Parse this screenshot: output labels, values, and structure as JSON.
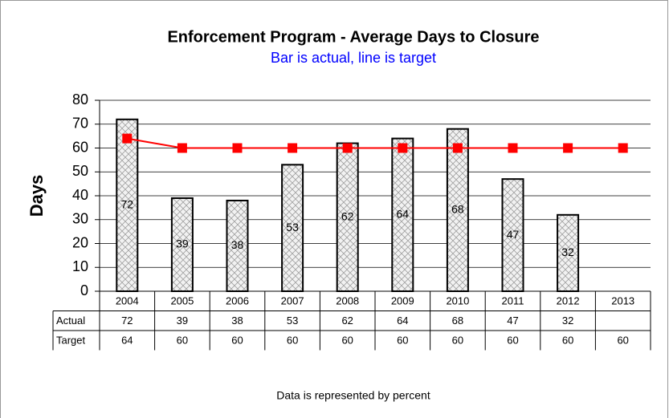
{
  "chart_data": {
    "type": "bar",
    "title": "Enforcement Program - Average Days to Closure",
    "subtitle": "Bar is actual, line is target",
    "ylabel": "Days",
    "footnote": "Data is represented by percent",
    "categories": [
      "2004",
      "2005",
      "2006",
      "2007",
      "2008",
      "2009",
      "2010",
      "2011",
      "2012",
      "2013"
    ],
    "series": [
      {
        "name": "Actual",
        "type": "bar",
        "color": "#a0a0a0",
        "values": [
          72,
          39,
          38,
          53,
          62,
          64,
          68,
          47,
          32,
          null
        ]
      },
      {
        "name": "Target",
        "type": "line",
        "color": "#ff0000",
        "values": [
          64,
          60,
          60,
          60,
          60,
          60,
          60,
          60,
          60,
          60
        ]
      }
    ],
    "ylim": [
      0,
      80
    ],
    "yticks": [
      0,
      10,
      20,
      30,
      40,
      50,
      60,
      70,
      80
    ],
    "grid": true
  }
}
